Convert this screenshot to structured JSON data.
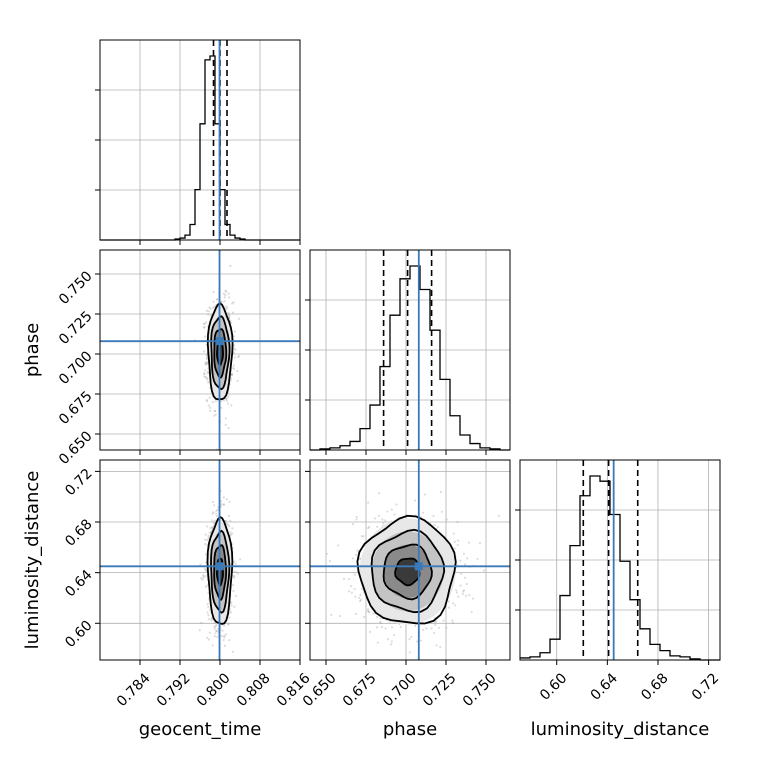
{
  "chart_data": {
    "type": "corner",
    "grid": true,
    "parameters": [
      {
        "name": "geocent_time",
        "label": "geocent_time",
        "range": [
          0.776,
          0.816
        ],
        "ticks": [
          0.784,
          0.792,
          0.8,
          0.808,
          0.816
        ],
        "tick_labels": [
          "0.784",
          "0.792",
          "0.800",
          "0.808",
          "0.816"
        ],
        "truth": 0.7999,
        "median": 0.8,
        "q_low": 0.7987,
        "q_high": 0.8014,
        "sigma": 0.0012,
        "hist": {
          "range": [
            0.776,
            0.816
          ],
          "counts": [
            0,
            0,
            0,
            0,
            0,
            0,
            0,
            0,
            0,
            0,
            0,
            0,
            0,
            0,
            0,
            1,
            2,
            5,
            16,
            52,
            120,
            186,
            190,
            120,
            52,
            16,
            5,
            2,
            1,
            0,
            0,
            0,
            0,
            0,
            0,
            0,
            0,
            0,
            0,
            0
          ]
        }
      },
      {
        "name": "phase",
        "label": "phase",
        "range": [
          0.64,
          0.765
        ],
        "ticks": [
          0.65,
          0.675,
          0.7,
          0.725,
          0.75
        ],
        "tick_labels": [
          "0.650",
          "0.675",
          "0.700",
          "0.725",
          "0.750"
        ],
        "truth": 0.708,
        "median": 0.701,
        "q_low": 0.686,
        "q_high": 0.716,
        "sigma": 0.015,
        "hist": {
          "range": [
            0.64,
            0.765
          ],
          "counts": [
            0,
            1,
            2,
            4,
            8,
            20,
            42,
            78,
            126,
            160,
            172,
            150,
            112,
            66,
            32,
            14,
            6,
            2,
            1,
            0
          ]
        }
      },
      {
        "name": "luminosity_distance",
        "label": "luminosity_distance",
        "range": [
          0.571,
          0.729
        ],
        "ticks": [
          0.6,
          0.64,
          0.68,
          0.72
        ],
        "tick_labels": [
          "0.60",
          "0.64",
          "0.68",
          "0.72"
        ],
        "truth": 0.645,
        "median": 0.641,
        "q_low": 0.621,
        "q_high": 0.664,
        "sigma": 0.021,
        "hist": {
          "range": [
            0.571,
            0.729
          ],
          "counts": [
            2,
            3,
            7,
            20,
            62,
            110,
            158,
            177,
            172,
            140,
            95,
            58,
            30,
            15,
            9,
            4,
            3,
            1,
            0,
            0
          ]
        }
      }
    ],
    "pair_correlations": [
      {
        "x": "geocent_time",
        "y": "phase",
        "rho": 0.0
      },
      {
        "x": "geocent_time",
        "y": "luminosity_distance",
        "rho": 0.0
      },
      {
        "x": "phase",
        "y": "luminosity_distance",
        "rho": -0.05
      }
    ],
    "contour_levels_sigma": [
      0.5,
      1.0,
      1.5,
      2.0
    ],
    "colors": {
      "truth": "#3a7ab8",
      "contour": "#000000",
      "samples": "#9a9a9a",
      "density": "#000000",
      "grid": "#b0b0b0"
    }
  }
}
